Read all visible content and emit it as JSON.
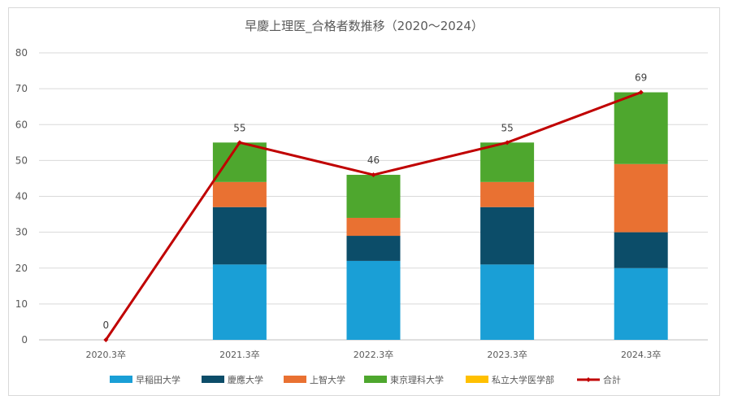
{
  "chart_data": {
    "type": "bar",
    "title": "早慶上理医_合格者数推移（2020～2024）",
    "categories": [
      "2020.3卒",
      "2021.3卒",
      "2022.3卒",
      "2023.3卒",
      "2024.3卒"
    ],
    "ylim": [
      0,
      80
    ],
    "yticks": [
      0,
      10,
      20,
      30,
      40,
      50,
      60,
      70,
      80
    ],
    "stacked": true,
    "grid": true,
    "legend_position": "bottom",
    "series": [
      {
        "name": "早稲田大学",
        "type": "bar",
        "color": "#1a9fd6",
        "values": [
          0,
          21,
          22,
          21,
          20
        ]
      },
      {
        "name": "慶應大学",
        "type": "bar",
        "color": "#0c4d69",
        "values": [
          0,
          16,
          7,
          16,
          10
        ]
      },
      {
        "name": "上智大学",
        "type": "bar",
        "color": "#e97132",
        "values": [
          0,
          7,
          5,
          7,
          19
        ]
      },
      {
        "name": "東京理科大学",
        "type": "bar",
        "color": "#4ea72e",
        "values": [
          0,
          11,
          12,
          11,
          20
        ]
      },
      {
        "name": "私立大学医学部",
        "type": "bar",
        "color": "#ffc000",
        "values": [
          0,
          0,
          0,
          0,
          0
        ]
      },
      {
        "name": "合計",
        "type": "line",
        "color": "#c00000",
        "values": [
          0,
          55,
          46,
          55,
          69
        ],
        "data_labels": [
          "0",
          "55",
          "46",
          "55",
          "69"
        ]
      }
    ]
  }
}
